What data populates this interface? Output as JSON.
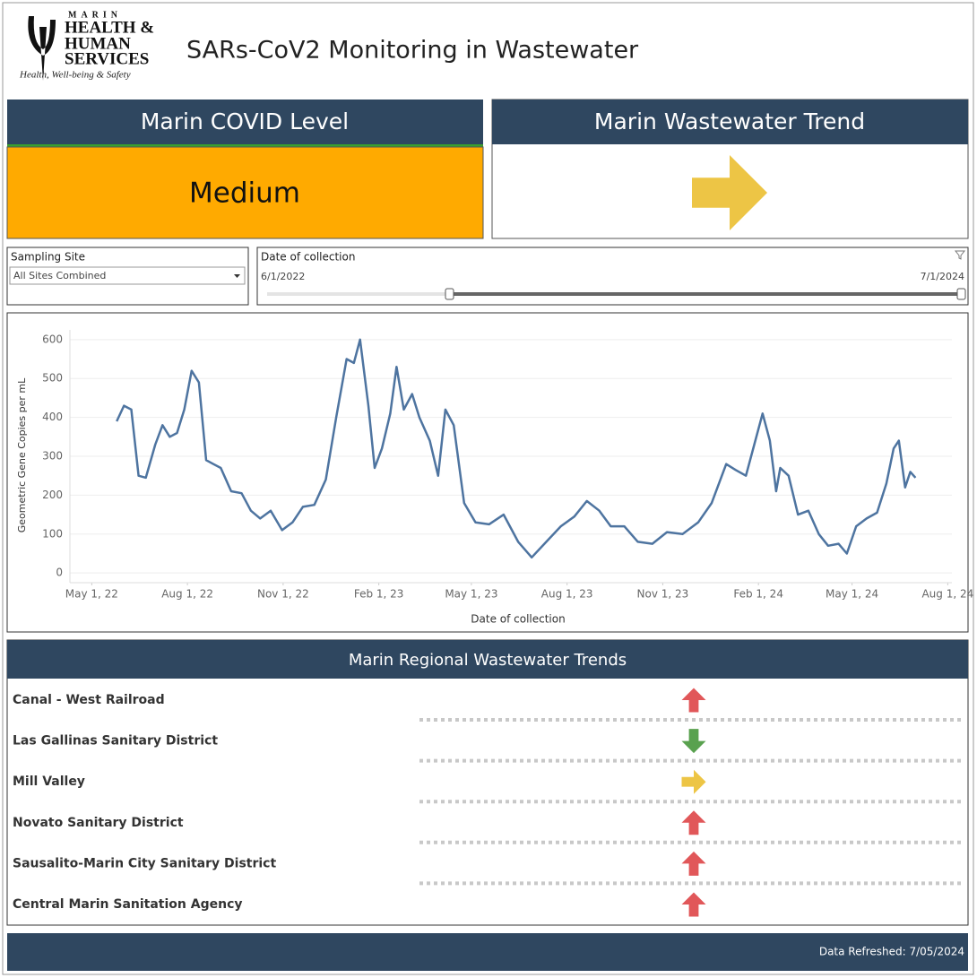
{
  "logo": {
    "lines": [
      "MARIN",
      "HEALTH &",
      "HUMAN",
      "SERVICES"
    ],
    "tagline": "Health, Well-being & Safety"
  },
  "header": {
    "title": "SARs-CoV2 Monitoring in Wastewater"
  },
  "level_panel": {
    "title": "Marin COVID Level",
    "value": "Medium",
    "color": "#ffaa00"
  },
  "trend_panel": {
    "title": "Marin Wastewater Trend",
    "trend": "flat"
  },
  "filters": {
    "site": {
      "label": "Sampling Site",
      "selected": "All Sites Combined"
    },
    "date": {
      "label": "Date of collection",
      "start": "6/1/2022",
      "end": "7/1/2024"
    }
  },
  "chart_data": {
    "type": "line",
    "xlabel": "Date of collection",
    "ylabel": "Geometric Gene Copies per mL",
    "color": "#4e74a0",
    "grid": true,
    "xlim": [
      "2022-04-10",
      "2024-08-05"
    ],
    "ylim": [
      -25,
      625
    ],
    "yticks": [
      0,
      100,
      200,
      300,
      400,
      500,
      600
    ],
    "xticks": [
      {
        "value": "2022-05-01",
        "label": "May 1, 22"
      },
      {
        "value": "2022-08-01",
        "label": "Aug 1, 22"
      },
      {
        "value": "2022-11-01",
        "label": "Nov 1, 22"
      },
      {
        "value": "2023-02-01",
        "label": "Feb 1, 23"
      },
      {
        "value": "2023-05-01",
        "label": "May 1, 23"
      },
      {
        "value": "2023-08-01",
        "label": "Aug 1, 23"
      },
      {
        "value": "2023-11-01",
        "label": "Nov 1, 23"
      },
      {
        "value": "2024-02-01",
        "label": "Feb 1, 24"
      },
      {
        "value": "2024-05-01",
        "label": "May 1, 24"
      },
      {
        "value": "2024-08-01",
        "label": "Aug 1, 24"
      }
    ],
    "x": [
      "2022-05-25",
      "2022-06-01",
      "2022-06-08",
      "2022-06-15",
      "2022-06-22",
      "2022-07-01",
      "2022-07-08",
      "2022-07-15",
      "2022-07-22",
      "2022-07-29",
      "2022-08-05",
      "2022-08-12",
      "2022-08-19",
      "2022-08-26",
      "2022-09-02",
      "2022-09-12",
      "2022-09-22",
      "2022-10-01",
      "2022-10-10",
      "2022-10-20",
      "2022-10-31",
      "2022-11-10",
      "2022-11-20",
      "2022-12-01",
      "2022-12-12",
      "2022-12-22",
      "2023-01-01",
      "2023-01-08",
      "2023-01-14",
      "2023-01-22",
      "2023-01-28",
      "2023-02-04",
      "2023-02-12",
      "2023-02-18",
      "2023-02-25",
      "2023-03-05",
      "2023-03-12",
      "2023-03-22",
      "2023-03-30",
      "2023-04-06",
      "2023-04-14",
      "2023-04-24",
      "2023-05-05",
      "2023-05-18",
      "2023-06-01",
      "2023-06-15",
      "2023-06-28",
      "2023-07-12",
      "2023-07-26",
      "2023-08-08",
      "2023-08-20",
      "2023-09-01",
      "2023-09-12",
      "2023-09-25",
      "2023-10-08",
      "2023-10-22",
      "2023-11-05",
      "2023-11-20",
      "2023-12-05",
      "2023-12-18",
      "2024-01-01",
      "2024-01-10",
      "2024-01-20",
      "2024-01-28",
      "2024-02-05",
      "2024-02-12",
      "2024-02-18",
      "2024-02-22",
      "2024-03-01",
      "2024-03-10",
      "2024-03-20",
      "2024-03-30",
      "2024-04-08",
      "2024-04-18",
      "2024-04-26",
      "2024-05-05",
      "2024-05-15",
      "2024-05-25",
      "2024-06-03",
      "2024-06-10",
      "2024-06-15",
      "2024-06-21",
      "2024-06-26",
      "2024-07-01"
    ],
    "values": [
      390,
      430,
      420,
      250,
      245,
      330,
      380,
      350,
      360,
      420,
      520,
      490,
      290,
      280,
      270,
      210,
      205,
      160,
      140,
      160,
      110,
      130,
      170,
      175,
      240,
      400,
      550,
      540,
      600,
      430,
      270,
      320,
      410,
      530,
      420,
      460,
      400,
      340,
      250,
      420,
      380,
      180,
      130,
      125,
      150,
      80,
      40,
      80,
      120,
      145,
      185,
      160,
      120,
      120,
      80,
      75,
      105,
      100,
      130,
      180,
      280,
      265,
      250,
      330,
      410,
      340,
      210,
      270,
      250,
      150,
      160,
      100,
      70,
      75,
      50,
      120,
      140,
      155,
      230,
      320,
      340,
      220,
      260,
      245
    ]
  },
  "regional": {
    "title": "Marin Regional Wastewater Trends",
    "sites": [
      {
        "name": "Canal - West Railroad",
        "trend": "up"
      },
      {
        "name": "Las Gallinas Sanitary District",
        "trend": "down"
      },
      {
        "name": "Mill Valley",
        "trend": "flat"
      },
      {
        "name": "Novato Sanitary District",
        "trend": "up"
      },
      {
        "name": "Sausalito-Marin City Sanitary District",
        "trend": "up"
      },
      {
        "name": "Central Marin Sanitation Agency",
        "trend": "up"
      }
    ]
  },
  "footer": {
    "refreshed": "Data Refreshed: 7/05/2024"
  }
}
